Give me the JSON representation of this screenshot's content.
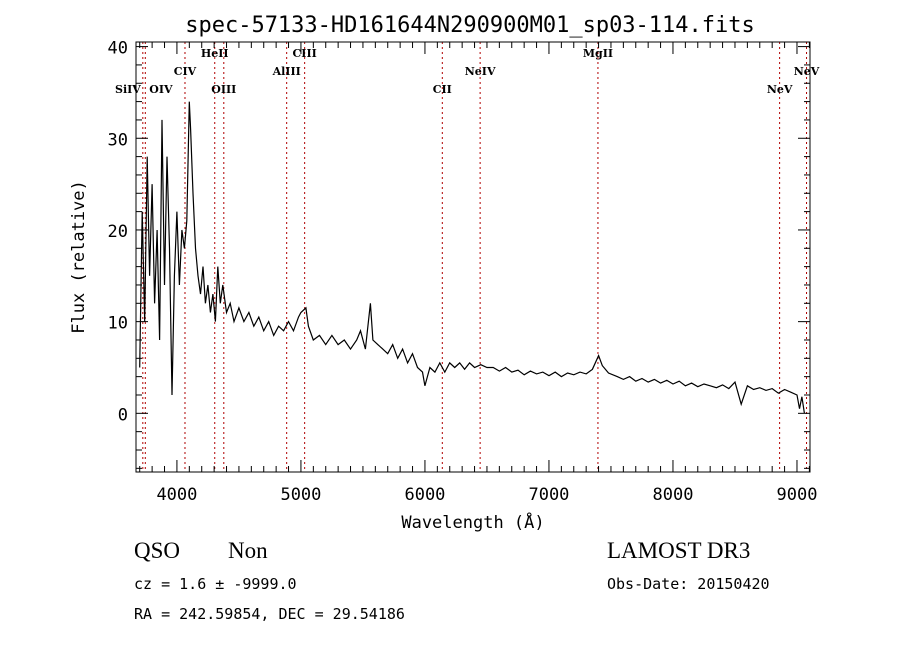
{
  "chart_data": {
    "type": "line",
    "title": "spec-57133-HD161644N290900M01_sp03-114.fits",
    "xlabel": "Wavelength (Å)",
    "ylabel": "Flux (relative)",
    "xlim": [
      3670,
      9105
    ],
    "ylim": [
      -6.4,
      40.5
    ],
    "xticks": [
      4000,
      5000,
      6000,
      7000,
      8000,
      9000
    ],
    "yticks": [
      0,
      10,
      20,
      30,
      40
    ],
    "grid": false,
    "series": [
      {
        "name": "spectrum",
        "x": [
          3700,
          3720,
          3740,
          3760,
          3780,
          3800,
          3820,
          3840,
          3860,
          3880,
          3900,
          3920,
          3940,
          3960,
          3980,
          4000,
          4020,
          4040,
          4060,
          4080,
          4100,
          4110,
          4130,
          4150,
          4170,
          4190,
          4210,
          4230,
          4250,
          4270,
          4290,
          4310,
          4330,
          4350,
          4370,
          4400,
          4430,
          4460,
          4500,
          4540,
          4580,
          4620,
          4660,
          4700,
          4740,
          4780,
          4820,
          4860,
          4900,
          4940,
          4980,
          5000,
          5040,
          5060,
          5100,
          5150,
          5200,
          5250,
          5300,
          5350,
          5400,
          5450,
          5480,
          5520,
          5560,
          5580,
          5620,
          5660,
          5700,
          5740,
          5780,
          5820,
          5860,
          5900,
          5940,
          5980,
          6000,
          6040,
          6080,
          6120,
          6160,
          6200,
          6240,
          6280,
          6320,
          6360,
          6400,
          6450,
          6500,
          6550,
          6600,
          6650,
          6700,
          6750,
          6800,
          6850,
          6900,
          6950,
          7000,
          7050,
          7100,
          7150,
          7200,
          7250,
          7300,
          7350,
          7400,
          7430,
          7480,
          7550,
          7600,
          7650,
          7700,
          7750,
          7800,
          7850,
          7900,
          7950,
          8000,
          8050,
          8100,
          8150,
          8200,
          8250,
          8300,
          8350,
          8400,
          8450,
          8500,
          8550,
          8600,
          8650,
          8700,
          8750,
          8800,
          8850,
          8900,
          8950,
          9000,
          9020,
          9040,
          9060
        ],
        "y": [
          5,
          22,
          10,
          28,
          15,
          25,
          12,
          20,
          8,
          32,
          14,
          28,
          18,
          2,
          15,
          22,
          14,
          20,
          18,
          21,
          34,
          31,
          24,
          18,
          15,
          13,
          16,
          12,
          14,
          11,
          13,
          10,
          16,
          12,
          14,
          11,
          12,
          10,
          11.5,
          10,
          11,
          9.5,
          10.5,
          9,
          10,
          8.5,
          9.5,
          9,
          10,
          9,
          10.5,
          11,
          11.5,
          9.5,
          8,
          8.5,
          7.5,
          8.5,
          7.5,
          8,
          7,
          8,
          9,
          7,
          12,
          8,
          7.5,
          7,
          6.5,
          7.5,
          6,
          7,
          5.5,
          6.5,
          5,
          4.5,
          3,
          5,
          4.5,
          5.5,
          4.5,
          5.5,
          5,
          5.5,
          4.8,
          5.5,
          5,
          5.3,
          5,
          5,
          4.6,
          5,
          4.5,
          4.7,
          4.2,
          4.6,
          4.3,
          4.5,
          4.1,
          4.5,
          4,
          4.4,
          4.2,
          4.5,
          4.3,
          4.8,
          6.3,
          5.2,
          4.4,
          4,
          3.7,
          4,
          3.5,
          3.8,
          3.4,
          3.7,
          3.3,
          3.6,
          3.2,
          3.5,
          3,
          3.3,
          2.9,
          3.2,
          3,
          2.8,
          3.1,
          2.7,
          3.4,
          1,
          3,
          2.6,
          2.8,
          2.5,
          2.7,
          2.2,
          2.6,
          2.3,
          2,
          0.5,
          1.8,
          0
        ]
      }
    ],
    "emission_lines": [
      {
        "label": "SiIV",
        "wavelength": 3725
      },
      {
        "label": "OIV",
        "wavelength": 3745
      },
      {
        "label": "CIV",
        "wavelength": 4065
      },
      {
        "label": "HeII",
        "wavelength": 4305
      },
      {
        "label": "OIII",
        "wavelength": 4378
      },
      {
        "label": "AlIII",
        "wavelength": 4885
      },
      {
        "label": "CIII",
        "wavelength": 5030
      },
      {
        "label": "CII",
        "wavelength": 6140
      },
      {
        "label": "NeIV",
        "wavelength": 6445
      },
      {
        "label": "MgII",
        "wavelength": 7395
      },
      {
        "label": "NeV",
        "wavelength": 8860
      },
      {
        "label": "NeV",
        "wavelength": 9077
      }
    ],
    "line_color": "#b00000"
  },
  "info": {
    "class": "QSO",
    "subclass": "Non",
    "survey": "LAMOST DR3",
    "cz": "cz = 1.6 ± -9999.0",
    "obs_date": "Obs-Date: 20150420",
    "coords": "RA = 242.59854, DEC =  29.54186"
  }
}
